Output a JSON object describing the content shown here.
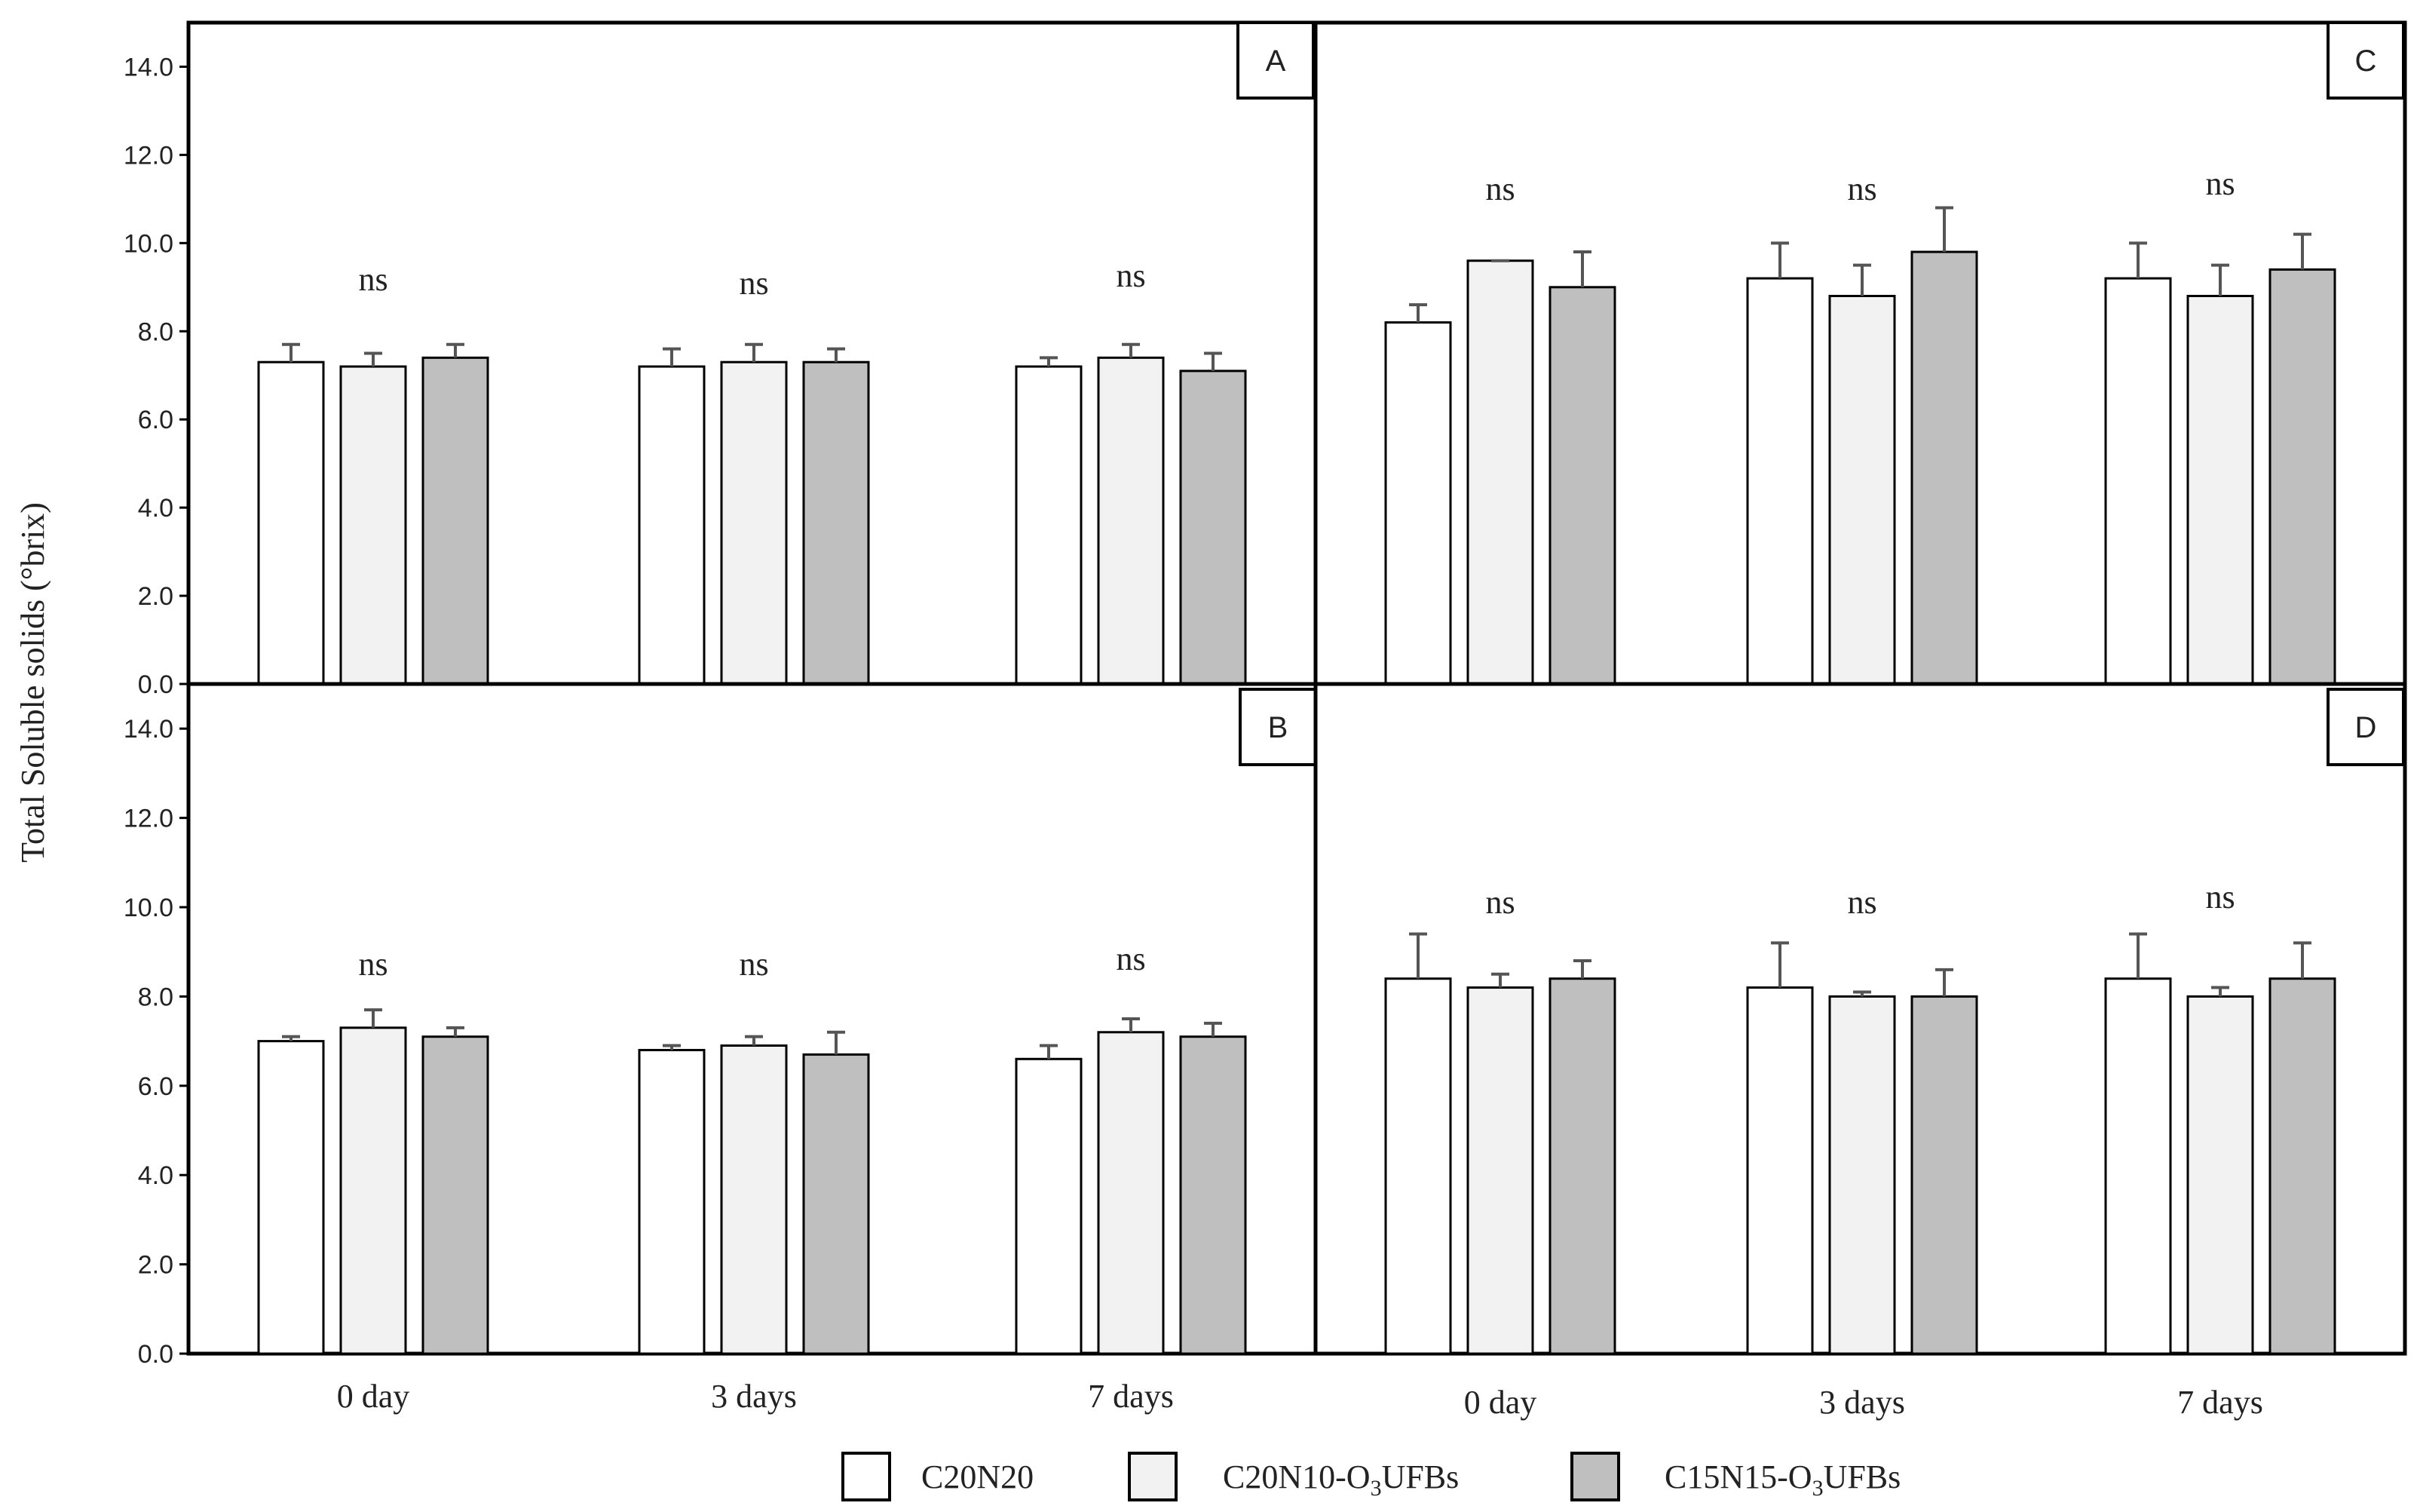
{
  "y_axis_label": "Total Soluble solids (°brix)",
  "y_ticks": [
    "0.0",
    "2.0",
    "4.0",
    "6.0",
    "8.0",
    "10.0",
    "12.0",
    "14.0"
  ],
  "legend": [
    {
      "label": "C20N20",
      "color": "#ffffff"
    },
    {
      "label_main": "C20N10-O",
      "label_sub": "3",
      "label_tail": "UFBs",
      "label": "C20N10-O3UFBs",
      "color": "#f2f2f2"
    },
    {
      "label_main": "C15N15-O",
      "label_sub": "3",
      "label_tail": "UFBs",
      "label": "C15N15-O3UFBs",
      "color": "#bfbfbf"
    }
  ],
  "chart_data": [
    {
      "panel": "A",
      "type": "bar",
      "ylim": [
        0,
        15
      ],
      "categories": [
        "0 day",
        "3 days",
        "7 days"
      ],
      "significance": [
        "ns",
        "ns",
        "ns"
      ],
      "series": [
        {
          "name": "C20N20",
          "values": [
            7.3,
            7.2,
            7.2
          ],
          "errors": [
            0.4,
            0.4,
            0.2
          ]
        },
        {
          "name": "C20N10-O3UFBs",
          "values": [
            7.2,
            7.3,
            7.4
          ],
          "errors": [
            0.3,
            0.4,
            0.3
          ]
        },
        {
          "name": "C15N15-O3UFBs",
          "values": [
            7.4,
            7.3,
            7.1
          ],
          "errors": [
            0.3,
            0.3,
            0.4
          ]
        }
      ]
    },
    {
      "panel": "B",
      "type": "bar",
      "ylim": [
        0,
        15
      ],
      "categories": [
        "0 day",
        "3 days",
        "7 days"
      ],
      "significance": [
        "ns",
        "ns",
        "ns"
      ],
      "series": [
        {
          "name": "C20N20",
          "values": [
            7.0,
            6.8,
            6.6
          ],
          "errors": [
            0.1,
            0.1,
            0.3
          ]
        },
        {
          "name": "C20N10-O3UFBs",
          "values": [
            7.3,
            6.9,
            7.2
          ],
          "errors": [
            0.4,
            0.2,
            0.3
          ]
        },
        {
          "name": "C15N15-O3UFBs",
          "values": [
            7.1,
            6.7,
            7.1
          ],
          "errors": [
            0.2,
            0.5,
            0.3
          ]
        }
      ]
    },
    {
      "panel": "C",
      "type": "bar",
      "ylim": [
        0,
        15
      ],
      "categories": [
        "0 day",
        "3 days",
        "7 days"
      ],
      "significance": [
        "ns",
        "ns",
        "ns"
      ],
      "series": [
        {
          "name": "C20N20",
          "values": [
            8.2,
            9.2,
            9.2
          ],
          "errors": [
            0.4,
            0.8,
            0.8
          ]
        },
        {
          "name": "C20N10-O3UFBs",
          "values": [
            9.6,
            8.8,
            8.8
          ],
          "errors": [
            0.0,
            0.7,
            0.7
          ]
        },
        {
          "name": "C15N15-O3UFBs",
          "values": [
            9.0,
            9.8,
            9.4
          ],
          "errors": [
            0.8,
            1.0,
            0.8
          ]
        }
      ]
    },
    {
      "panel": "D",
      "type": "bar",
      "ylim": [
        0,
        15
      ],
      "categories": [
        "0 day",
        "3 days",
        "7 days"
      ],
      "significance": [
        "ns",
        "ns",
        "ns"
      ],
      "series": [
        {
          "name": "C20N20",
          "values": [
            8.4,
            8.2,
            8.4
          ],
          "errors": [
            1.0,
            1.0,
            1.0
          ]
        },
        {
          "name": "C20N10-O3UFBs",
          "values": [
            8.2,
            8.0,
            8.0
          ],
          "errors": [
            0.3,
            0.1,
            0.2
          ]
        },
        {
          "name": "C15N15-O3UFBs",
          "values": [
            8.4,
            8.0,
            8.4
          ],
          "errors": [
            0.4,
            0.6,
            0.8
          ]
        }
      ]
    }
  ]
}
